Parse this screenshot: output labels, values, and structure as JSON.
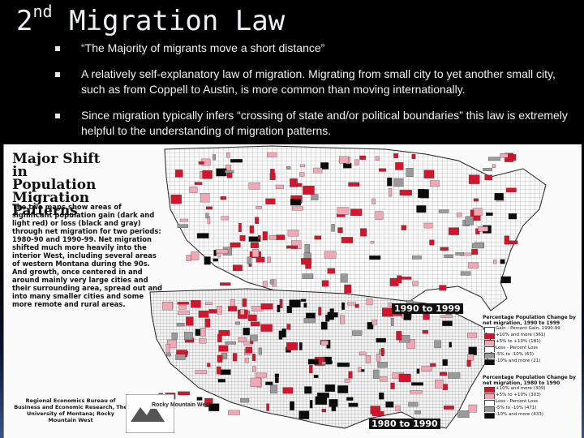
{
  "slide": {
    "title_prefix": "2",
    "title_sup": "nd",
    "title_main": "Migration Law",
    "bullets": [
      "“The Majority of migrants move a short distance”",
      "A relatively self-explanatory law of migration.  Migrating from small city to yet another small city, such as from Coppell to Austin, is more common than moving internationally.",
      "Since migration typically infers “crossing of state and/or political boundaries” this law is extremely helpful to the understanding of migration patterns."
    ]
  },
  "figure": {
    "title": "Major Shift in Population Migration Patterns",
    "description": "The two maps show areas of significant population gain (dark and light red) or loss (black and gray) through net migration for two periods: 1980-90 and 1990-99. Net migration shifted much more heavily into the interior West, including several areas of western Montana during the 90s. And growth, once centered in and around mainly very large cities and their surrounding area, spread out and into many smaller cities and some more remote and rural areas.",
    "credit": "Regional Economics Bureau of Business and Economic Research, The University of Montana; Rocky Mountain West",
    "logo_text": "Rocky Mountain West",
    "top_map_label": "1990 to 1999",
    "bottom_map_label": "1980 to 1990",
    "colors": {
      "dark_red": "#d4142a",
      "light_red": "#f2a7b4",
      "gray": "#9a9a9a",
      "black": "#0b0b0b",
      "white": "#fdfdfd"
    },
    "legends": [
      {
        "title": "Percentage Population Change by net migration, 1990 to 1999",
        "rows": [
          {
            "label": "Gain - Percent Gain, 1990-99",
            "color": "#ffffff"
          },
          {
            "label": "+10% and more (361)",
            "color": "#d4142a"
          },
          {
            "label": "+5% to +10% (181)",
            "color": "#f2a7b4"
          },
          {
            "label": "Loss - Percent Loss",
            "color": "#ffffff"
          },
          {
            "label": "-5% to -10% (63)",
            "color": "#9a9a9a"
          },
          {
            "label": "-10% and more (21)",
            "color": "#0b0b0b"
          }
        ]
      },
      {
        "title": "Percentage Population Change by net migration, 1980 to 1990",
        "rows": [
          {
            "label": "+10% and more (309)",
            "color": "#d4142a"
          },
          {
            "label": "+5% to +10% (303)",
            "color": "#f2a7b4"
          },
          {
            "label": "Loss - Percent Loss",
            "color": "#ffffff"
          },
          {
            "label": "-5% to -10% (471)",
            "color": "#9a9a9a"
          },
          {
            "label": "-10% and more (433)",
            "color": "#0b0b0b"
          }
        ]
      }
    ]
  }
}
